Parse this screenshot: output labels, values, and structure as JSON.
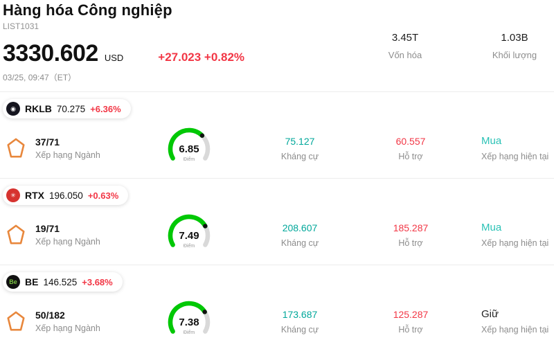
{
  "header": {
    "title": "Hàng hóa Công nghiệp",
    "list_id": "LIST1031",
    "price": "3330.602",
    "currency": "USD",
    "change": "+27.023 +0.82%",
    "timestamp": "03/25, 09:47（ET）",
    "market_cap": {
      "value": "3.45T",
      "label": "Vốn hóa"
    },
    "volume": {
      "value": "1.03B",
      "label": "Khối lượng"
    }
  },
  "labels": {
    "rank": "Xếp hạng Ngành",
    "score": "Điểm",
    "resistance": "Kháng cự",
    "support": "Hỗ trợ",
    "current_rating": "Xếp hạng hiện tại"
  },
  "colors": {
    "up_red": "#f23645",
    "teal_value": "#00a79a",
    "buy_teal": "#2bc2b6",
    "hold_black": "#222222",
    "gauge_green": "#00c805",
    "gauge_track": "#d9d9d9",
    "gauge_dot": "#111111",
    "rank_icon_orange": "#e8873c"
  },
  "stocks": [
    {
      "ticker": "RKLB",
      "price": "70.275",
      "change": "+6.36%",
      "logo": {
        "glyph": "◉",
        "bg": "#15151f",
        "color": "#ffffff"
      },
      "rank": "37/71",
      "score": "6.85",
      "score_value": 6.85,
      "resistance": "75.127",
      "support": "60.557",
      "rating": "Mua",
      "rating_color": "#2bc2b6"
    },
    {
      "ticker": "RTX",
      "price": "196.050",
      "change": "+0.63%",
      "logo": {
        "glyph": "✳",
        "bg": "#d6332f",
        "color": "#ffffff"
      },
      "rank": "19/71",
      "score": "7.49",
      "score_value": 7.49,
      "resistance": "208.607",
      "support": "185.287",
      "rating": "Mua",
      "rating_color": "#2bc2b6"
    },
    {
      "ticker": "BE",
      "price": "146.525",
      "change": "+3.68%",
      "logo": {
        "glyph": "Be",
        "bg": "#111111",
        "color": "#7ac143"
      },
      "rank": "50/182",
      "score": "7.38",
      "score_value": 7.38,
      "resistance": "173.687",
      "support": "125.287",
      "rating": "Giữ",
      "rating_color": "#222222"
    }
  ]
}
